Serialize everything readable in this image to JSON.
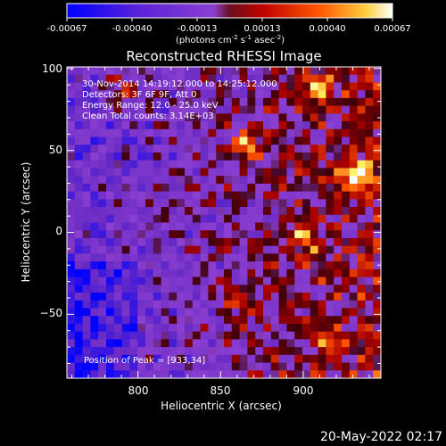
{
  "colorbar": {
    "tick_labels": [
      "-0.00067",
      "-0.00040",
      "-0.00013",
      "0.00013",
      "0.00040",
      "0.00067"
    ],
    "range": [
      -0.00067,
      0.00067
    ],
    "units_label": "(photons cm",
    "units_exp1": "-2",
    "units_mid": " s",
    "units_exp2": "-1",
    "units_end": " asec",
    "units_exp3": "-2",
    "units_close": ")"
  },
  "colors": {
    "negative_low": "#0000ff",
    "negative_mid": "#6a2bc4",
    "zero": "#8b3fd0",
    "positive_low": "#aa0000",
    "positive_mid": "#ff5500",
    "positive_high": "#ffee55",
    "max": "#ffffff",
    "frame": "#ffffff",
    "background": "#000000"
  },
  "chart_data": {
    "type": "heatmap",
    "title": "Reconstructed RHESSI Image",
    "xlabel": "Heliocentric X (arcsec)",
    "ylabel": "Heliocentric Y (arcsec)",
    "xlim": [
      757,
      947
    ],
    "ylim": [
      -89,
      101
    ],
    "xticks": [
      800,
      850,
      900
    ],
    "yticks": [
      -50,
      0,
      50,
      100
    ],
    "tick_labels_x": [
      "800",
      "850",
      "900"
    ],
    "tick_labels_y": [
      "−50",
      "0",
      "50",
      "100"
    ],
    "grid": false,
    "info_lines": [
      "30-Nov-2014 14:19:12.000 to 14:25:12.000",
      "Detectors: 3F 6F 9F, Att 0",
      "Energy Range: 12.0 - 25.0 keV",
      "Clean     Total counts: 3.14E+03"
    ],
    "peak_label": "Position of Peak = [933,34]",
    "peak": [
      933,
      34
    ],
    "bright_sources": [
      {
        "x": 933,
        "y": 34,
        "relative": 1.0
      },
      {
        "x": 866,
        "y": 52,
        "relative": 0.85
      },
      {
        "x": 790,
        "y": 88,
        "relative": 0.7
      },
      {
        "x": 910,
        "y": 88,
        "relative": 0.75
      },
      {
        "x": 900,
        "y": -5,
        "relative": 0.65
      },
      {
        "x": 860,
        "y": -40,
        "relative": 0.55
      },
      {
        "x": 915,
        "y": -70,
        "relative": 0.5
      }
    ]
  },
  "timestamp": "20-May-2022 02:17"
}
